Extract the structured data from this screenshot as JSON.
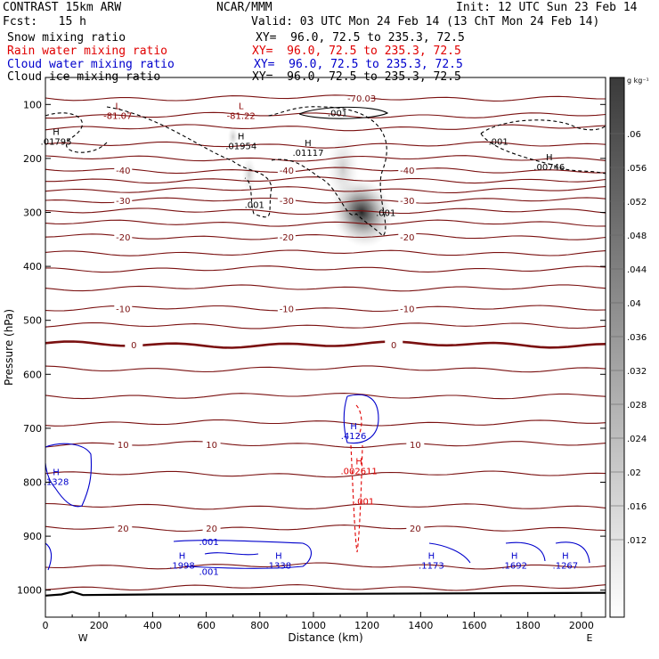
{
  "header": {
    "line1_left": "CONTRAST 15km ARW",
    "line1_mid": "NCAR/MMM",
    "line1_right": "Init: 12 UTC Sun 23 Feb 14",
    "line2_left": "Fcst:   15 h",
    "line2_right": "Valid: 03 UTC Mon 24 Feb 14 (13 ChT Mon 24 Feb 14)"
  },
  "fields": [
    {
      "name": "Snow mixing ratio",
      "xy": "XY=  96.0, 72.5 to 235.3, 72.5",
      "color": "#000000"
    },
    {
      "name": "Rain water mixing ratio",
      "xy": "XY=  96.0, 72.5 to 235.3, 72.5",
      "color": "#e00000"
    },
    {
      "name": "Cloud water mixing ratio",
      "xy": "XY=  96.0, 72.5 to 235.3, 72.5",
      "color": "#0000cc"
    },
    {
      "name": "Cloud ice mixing ratio",
      "xy": "XY=  96.0, 72.5 to 235.3, 72.5",
      "color": "#000000"
    }
  ],
  "colorbar": {
    "unit": "g kg⁻¹",
    "labels": [
      ".06",
      ".056",
      ".052",
      ".048",
      ".044",
      ".04",
      ".036",
      ".032",
      ".028",
      ".024",
      ".02",
      ".016",
      ".012"
    ]
  },
  "chart_data": {
    "type": "heatmap",
    "xlabel": "Distance (km)",
    "ylabel": "Pressure (hPa)",
    "xlim": [
      0,
      2090
    ],
    "ylim": [
      1050,
      50
    ],
    "xticks": [
      0,
      200,
      400,
      600,
      800,
      1000,
      1200,
      1400,
      1600,
      1800,
      2000
    ],
    "yticks": [
      100,
      200,
      300,
      400,
      500,
      600,
      700,
      800,
      900,
      1000
    ],
    "x_end_labels": {
      "left": "W",
      "right": "E"
    },
    "temperature_contours": [
      {
        "p": 88,
        "label": "-70.03"
      },
      {
        "p": 120
      },
      {
        "p": 143
      },
      {
        "p": 175
      },
      {
        "p": 200
      },
      {
        "p": 222,
        "label": "-40"
      },
      {
        "p": 240
      },
      {
        "p": 258
      },
      {
        "p": 278,
        "label": "-30"
      },
      {
        "p": 298
      },
      {
        "p": 320
      },
      {
        "p": 345,
        "label": "-20"
      },
      {
        "p": 375
      },
      {
        "p": 405
      },
      {
        "p": 440
      },
      {
        "p": 478,
        "label": "-10"
      },
      {
        "p": 510
      },
      {
        "p": 545,
        "label": "0",
        "bold": true
      },
      {
        "p": 590
      },
      {
        "p": 640
      },
      {
        "p": 690
      },
      {
        "p": 730,
        "label": "10"
      },
      {
        "p": 785
      },
      {
        "p": 845
      },
      {
        "p": 885,
        "label": "20"
      },
      {
        "p": 955
      },
      {
        "p": 995
      }
    ],
    "extrema_labels": [
      {
        "x": 270,
        "p": 112,
        "kind": "L",
        "value": "-81.07",
        "color": "#8b0000"
      },
      {
        "x": 730,
        "p": 112,
        "kind": "L",
        "value": "-81.22",
        "color": "#8b0000"
      },
      {
        "x": 40,
        "p": 160,
        "kind": "H",
        "value": ".01795",
        "color": "#000000"
      },
      {
        "x": 730,
        "p": 168,
        "kind": "H",
        "value": ".01954",
        "color": "#000000"
      },
      {
        "x": 980,
        "p": 180,
        "kind": "H",
        "value": ".01117",
        "color": "#000000"
      },
      {
        "x": 1880,
        "p": 207,
        "kind": "H",
        "value": ".00746",
        "color": "#000000"
      },
      {
        "x": 1150,
        "p": 705,
        "kind": "H",
        "value": ".4126",
        "color": "#0000cc"
      },
      {
        "x": 1170,
        "p": 770,
        "kind": "H",
        "value": ".002611",
        "color": "#e00000"
      },
      {
        "x": 40,
        "p": 790,
        "kind": "H",
        "value": ".1328",
        "color": "#0000cc"
      },
      {
        "x": 510,
        "p": 945,
        "kind": "H",
        "value": ".1998",
        "color": "#0000cc"
      },
      {
        "x": 870,
        "p": 945,
        "kind": "H",
        "value": ".1338",
        "color": "#0000cc"
      },
      {
        "x": 1440,
        "p": 945,
        "kind": "H",
        "value": ".1173",
        "color": "#0000cc"
      },
      {
        "x": 1750,
        "p": 945,
        "kind": "H",
        "value": ".1692",
        "color": "#0000cc"
      },
      {
        "x": 1940,
        "p": 945,
        "kind": "H",
        "value": ".1267",
        "color": "#0000cc"
      }
    ],
    "contour_labels": [
      {
        "x": 1090,
        "p": 115,
        "value": ".001",
        "color": "#000000"
      },
      {
        "x": 1690,
        "p": 168,
        "value": ".001",
        "color": "#000000"
      },
      {
        "x": 780,
        "p": 285,
        "value": ".001",
        "color": "#000000"
      },
      {
        "x": 1270,
        "p": 300,
        "value": ".001",
        "color": "#000000"
      },
      {
        "x": 1190,
        "p": 835,
        "value": ".001",
        "color": "#e00000"
      },
      {
        "x": 610,
        "p": 910,
        "value": ".001",
        "color": "#0000cc"
      },
      {
        "x": 610,
        "p": 965,
        "value": ".001",
        "color": "#0000cc"
      }
    ],
    "snow_max": {
      "x": 1180,
      "p": 300,
      "value": 0.06
    },
    "surface_pressure": [
      [
        0,
        1010
      ],
      [
        60,
        1008
      ],
      [
        100,
        1003
      ],
      [
        140,
        1009
      ],
      [
        400,
        1008
      ],
      [
        1000,
        1007
      ],
      [
        2090,
        1005
      ]
    ]
  }
}
